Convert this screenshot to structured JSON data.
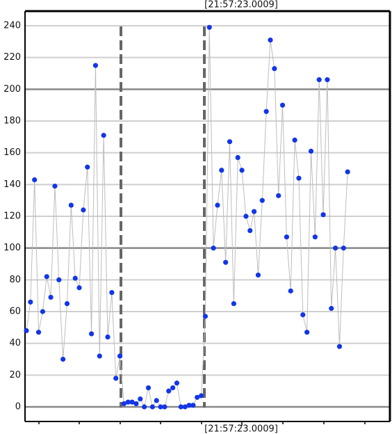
{
  "chart_data": {
    "type": "line-scatter",
    "top_label": "[21:57:23.0009]",
    "bottom_label": "[21:57:23.0009]",
    "values": [
      48,
      66,
      143,
      47,
      60,
      82,
      69,
      139,
      80,
      30,
      65,
      127,
      81,
      75,
      124,
      151,
      46,
      215,
      32,
      171,
      44,
      72,
      18,
      32,
      2,
      3,
      3,
      2,
      5,
      0,
      12,
      0,
      4,
      0,
      0,
      10,
      12,
      15,
      0,
      0,
      1,
      1,
      6,
      7,
      57,
      239,
      100,
      127,
      149,
      91,
      167,
      65,
      157,
      149,
      120,
      111,
      123,
      83,
      130,
      186,
      231,
      213,
      133,
      190,
      107,
      73,
      168,
      144,
      58,
      47,
      161,
      107,
      206,
      121,
      206,
      62,
      100,
      38,
      100,
      148
    ],
    "color": "#1236e8",
    "line_color": "#bdbdbd",
    "ylim": [
      -9.2,
      249.2
    ],
    "yticks": [
      0,
      20,
      40,
      60,
      80,
      100,
      120,
      140,
      160,
      180,
      200,
      220,
      240
    ],
    "grid": true
  }
}
